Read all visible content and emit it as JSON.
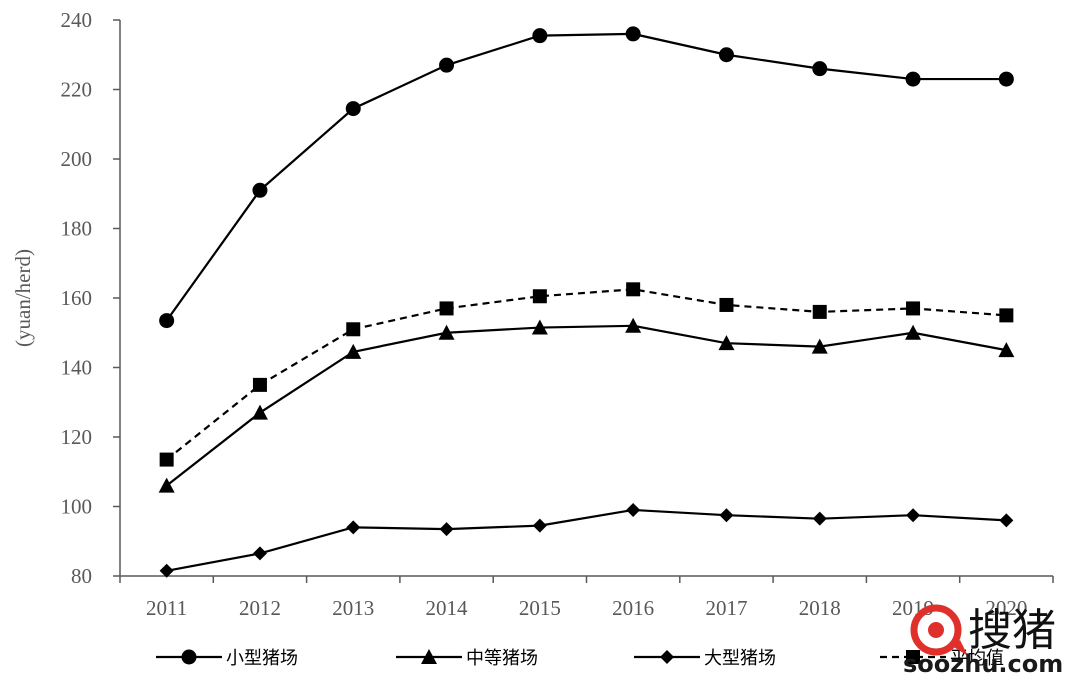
{
  "chart_data": {
    "type": "line",
    "title": "",
    "xlabel": "",
    "ylabel": "(yuan/herd)",
    "ylim": [
      80,
      240
    ],
    "yticks": [
      "80",
      "100",
      "120",
      "140",
      "160",
      "180",
      "200",
      "220",
      "240"
    ],
    "categories": [
      "2011",
      "2012",
      "2013",
      "2014",
      "2015",
      "2016",
      "2017",
      "2018",
      "2019",
      "2020"
    ],
    "grid": false,
    "legend_position": "bottom",
    "series": [
      {
        "name": "小型猪场",
        "marker": "circle",
        "dashed": false,
        "values": [
          153.5,
          191,
          214.5,
          227,
          235.5,
          236,
          230,
          226,
          223,
          223
        ]
      },
      {
        "name": "中等猪场",
        "marker": "triangle",
        "dashed": false,
        "values": [
          106,
          127,
          144.5,
          150,
          151.5,
          152,
          147,
          146,
          150,
          145
        ]
      },
      {
        "name": "大型猪场",
        "marker": "diamond",
        "dashed": false,
        "values": [
          81.5,
          86.5,
          94,
          93.5,
          94.5,
          99,
          97.5,
          96.5,
          97.5,
          96
        ]
      },
      {
        "name": "平均值",
        "marker": "square",
        "dashed": true,
        "values": [
          113.5,
          135,
          151,
          157,
          160.5,
          162.5,
          158,
          156,
          157,
          155
        ]
      }
    ]
  },
  "watermark": {
    "text_cn": "搜猪",
    "text_en": "soozhu.com",
    "brand_color": "#e0302b"
  }
}
